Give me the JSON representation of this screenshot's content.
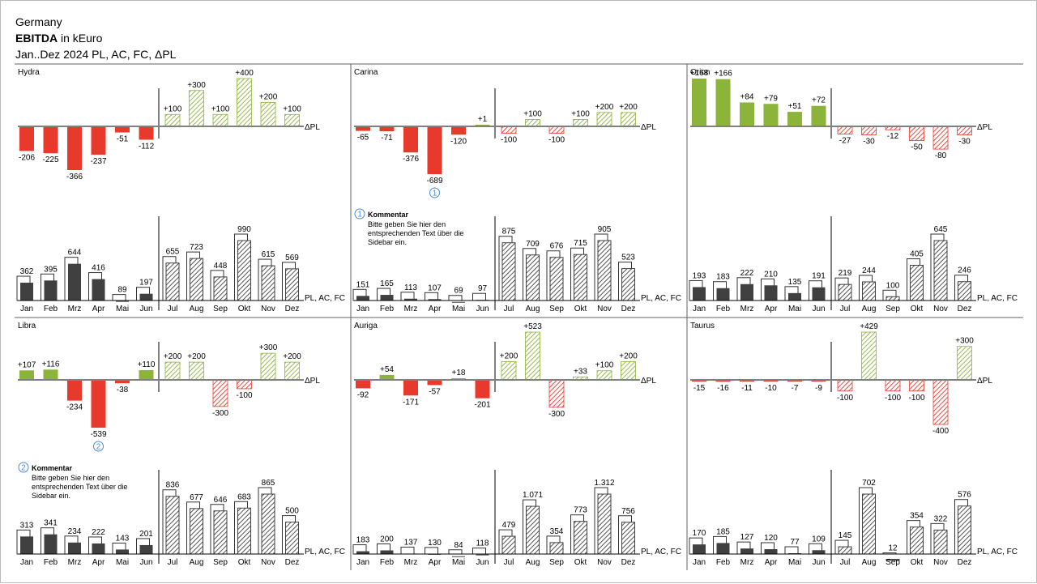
{
  "header": {
    "country": "Germany",
    "measure_bold": "EBITDA",
    "measure_rest": " in kEuro",
    "period": "Jan..Dez 2024 PL, AC, FC, ΔPL"
  },
  "labels": {
    "delta": "ΔPL",
    "scenarios": "PL, AC, FC"
  },
  "colors": {
    "positive": "#8cb33a",
    "negative": "#e8392d",
    "actual": "#404040",
    "plan_fill": "#ffffff",
    "axis": "#808080",
    "badge": "#4a8ad4"
  },
  "chart_data": [
    {
      "name": "Hydra",
      "type": "bar",
      "categories": [
        "Jan",
        "Feb",
        "Mrz",
        "Apr",
        "Mai",
        "Jun",
        "Jul",
        "Aug",
        "Sep",
        "Okt",
        "Nov",
        "Dez"
      ],
      "actual_months": 6,
      "pl": [
        362,
        395,
        644,
        416,
        89,
        197,
        655,
        723,
        448,
        990,
        615,
        569
      ],
      "value_labels": [
        "362",
        "395",
        "644",
        "416",
        "89",
        "197",
        "655",
        "723",
        "448",
        "990",
        "615",
        "569"
      ],
      "delta": [
        -206,
        -225,
        -366,
        -237,
        -51,
        -112,
        100,
        300,
        100,
        400,
        200,
        100
      ],
      "delta_labels": [
        "-206",
        "-225",
        "-366",
        "-237",
        "-51",
        "-112",
        "+100",
        "+300",
        "+100",
        "+400",
        "+200",
        "+100"
      ]
    },
    {
      "name": "Carina",
      "type": "bar",
      "categories": [
        "Jan",
        "Feb",
        "Mrz",
        "Apr",
        "Mai",
        "Jun",
        "Jul",
        "Aug",
        "Sep",
        "Okt",
        "Nov",
        "Dez"
      ],
      "actual_months": 6,
      "pl": [
        151,
        165,
        113,
        107,
        69,
        97,
        875,
        709,
        676,
        715,
        905,
        523
      ],
      "value_labels": [
        "151",
        "165",
        "113",
        "107",
        "69",
        "97",
        "875",
        "709",
        "676",
        "715",
        "905",
        "523"
      ],
      "delta": [
        -65,
        -71,
        -376,
        -689,
        -120,
        1,
        -100,
        100,
        -100,
        100,
        200,
        200
      ],
      "delta_labels": [
        "-65",
        "-71",
        "-376",
        "-689",
        "-120",
        "+1",
        "-100",
        "+100",
        "-100",
        "+100",
        "+200",
        "+200"
      ],
      "comment": {
        "badge": "1",
        "month_index": 3,
        "title": "Kommentar",
        "text": [
          "Bitte geben Sie hier den",
          "entsprechenden Text über die",
          "Sidebar ein."
        ]
      }
    },
    {
      "name": "Orion",
      "type": "bar",
      "categories": [
        "Jan",
        "Feb",
        "Mrz",
        "Apr",
        "Mai",
        "Jun",
        "Jul",
        "Aug",
        "Sep",
        "Okt",
        "Nov",
        "Dez"
      ],
      "actual_months": 6,
      "pl": [
        193,
        183,
        222,
        210,
        135,
        191,
        219,
        244,
        100,
        405,
        645,
        246
      ],
      "value_labels": [
        "193",
        "183",
        "222",
        "210",
        "135",
        "191",
        "219",
        "244",
        "100",
        "405",
        "645",
        "246"
      ],
      "delta": [
        168,
        166,
        84,
        79,
        51,
        72,
        -27,
        -30,
        -12,
        -50,
        -80,
        -30
      ],
      "delta_labels": [
        "+168",
        "+166",
        "+84",
        "+79",
        "+51",
        "+72",
        "-27",
        "-30",
        "-12",
        "-50",
        "-80",
        "-30"
      ]
    },
    {
      "name": "Libra",
      "type": "bar",
      "categories": [
        "Jan",
        "Feb",
        "Mrz",
        "Apr",
        "Mai",
        "Jun",
        "Jul",
        "Aug",
        "Sep",
        "Okt",
        "Nov",
        "Dez"
      ],
      "actual_months": 6,
      "pl": [
        313,
        341,
        234,
        222,
        143,
        201,
        836,
        677,
        646,
        683,
        865,
        500
      ],
      "value_labels": [
        "313",
        "341",
        "234",
        "222",
        "143",
        "201",
        "836",
        "677",
        "646",
        "683",
        "865",
        "500"
      ],
      "delta": [
        107,
        116,
        -234,
        -539,
        -38,
        110,
        200,
        200,
        -300,
        -100,
        300,
        200
      ],
      "delta_labels": [
        "+107",
        "+116",
        "-234",
        "-539",
        "-38",
        "+110",
        "+200",
        "+200",
        "-300",
        "-100",
        "+300",
        "+200"
      ],
      "comment": {
        "badge": "2",
        "month_index": 3,
        "title": "Kommentar",
        "text": [
          "Bitte geben Sie hier den",
          "entsprechenden Text über die",
          "Sidebar ein."
        ]
      }
    },
    {
      "name": "Auriga",
      "type": "bar",
      "categories": [
        "Jan",
        "Feb",
        "Mrz",
        "Apr",
        "Mai",
        "Jun",
        "Jul",
        "Aug",
        "Sep",
        "Okt",
        "Nov",
        "Dez"
      ],
      "actual_months": 6,
      "pl": [
        183,
        200,
        137,
        130,
        84,
        118,
        479,
        1071,
        354,
        773,
        1312,
        756
      ],
      "value_labels": [
        "183",
        "200",
        "137",
        "130",
        "84",
        "118",
        "479",
        "1.071",
        "354",
        "773",
        "1.312",
        "756"
      ],
      "delta": [
        -92,
        54,
        -171,
        -57,
        18,
        -201,
        200,
        523,
        -300,
        33,
        100,
        200
      ],
      "delta_labels": [
        "-92",
        "+54",
        "-171",
        "-57",
        "+18",
        "-201",
        "+200",
        "+523",
        "-300",
        "+33",
        "+100",
        "+200"
      ]
    },
    {
      "name": "Taurus",
      "type": "bar",
      "categories": [
        "Jan",
        "Feb",
        "Mrz",
        "Apr",
        "Mai",
        "Jun",
        "Jul",
        "Aug",
        "Sep",
        "Okt",
        "Nov",
        "Dez"
      ],
      "actual_months": 6,
      "pl": [
        170,
        185,
        127,
        120,
        77,
        109,
        145,
        702,
        12,
        354,
        322,
        576
      ],
      "value_labels": [
        "170",
        "185",
        "127",
        "120",
        "77",
        "109",
        "145",
        "702",
        "12",
        "354",
        "322",
        "576"
      ],
      "delta": [
        -15,
        -16,
        -11,
        -10,
        -7,
        -9,
        -100,
        429,
        -100,
        -100,
        -400,
        300
      ],
      "delta_labels": [
        "-15",
        "-16",
        "-11",
        "-10",
        "-7",
        "-9",
        "-100",
        "+429",
        "-100",
        "-100",
        "-400",
        "+300"
      ]
    }
  ]
}
